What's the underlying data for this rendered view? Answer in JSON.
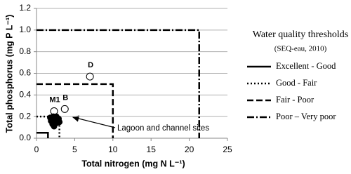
{
  "chart_data": {
    "type": "scatter",
    "y_label": "Total phosphorus (mg P L⁻¹)",
    "x_label": "Total  nitrogen (mg N L⁻¹)",
    "xlim": [
      0,
      25
    ],
    "xticks": [
      0,
      5,
      10,
      15,
      20,
      25
    ],
    "ylim": [
      0,
      1.2
    ],
    "yticks": [
      {
        "value": 0,
        "label": "0.0"
      },
      {
        "value": 0.2,
        "label": "0.2"
      },
      {
        "value": 0.4,
        "label": "0.4"
      },
      {
        "value": 0.6,
        "label": "0.6"
      },
      {
        "value": 0.8,
        "label": "0.8"
      },
      {
        "value": 1.0,
        "label": "1.0"
      },
      {
        "value": 1.2,
        "label": "1.2"
      }
    ],
    "grid": true,
    "legend_title": "Water quality thresholds",
    "legend_subtitle": "(SEQ-eau, 2010)",
    "thresholds": [
      {
        "name": "Excellent - Good",
        "style": "solid",
        "color": "#000000",
        "x": [
          0,
          1.5,
          1.5
        ],
        "values": [
          0.05,
          0.05,
          0
        ]
      },
      {
        "name": "Good - Fair",
        "style": "dotted",
        "color": "#000000",
        "x": [
          0,
          3,
          3
        ],
        "values": [
          0.2,
          0.2,
          0
        ]
      },
      {
        "name": "Fair - Poor",
        "style": "dashed",
        "color": "#000000",
        "x": [
          0,
          10,
          10
        ],
        "values": [
          0.5,
          0.5,
          0
        ]
      },
      {
        "name": "Poor – Very poor",
        "style": "dashdot",
        "color": "#000000",
        "x": [
          0,
          21.3,
          21.3
        ],
        "values": [
          1.0,
          1.0,
          0
        ]
      }
    ],
    "series": [
      {
        "marker": "open",
        "color": "#000000",
        "x": [
          2.3,
          3.7,
          7.0
        ],
        "values": [
          0.25,
          0.27,
          0.57
        ],
        "point_labels": [
          "M1",
          "B",
          "D"
        ]
      },
      {
        "marker": "filled",
        "color": "#000000",
        "x": [
          1.8,
          2.2,
          2.6,
          1.9,
          2.4,
          2.9,
          2.1,
          2.6,
          3.0,
          2.3
        ],
        "values": [
          0.19,
          0.2,
          0.2,
          0.16,
          0.17,
          0.18,
          0.13,
          0.14,
          0.15,
          0.11
        ]
      }
    ],
    "annotation": "Lagoon and channel sites"
  }
}
